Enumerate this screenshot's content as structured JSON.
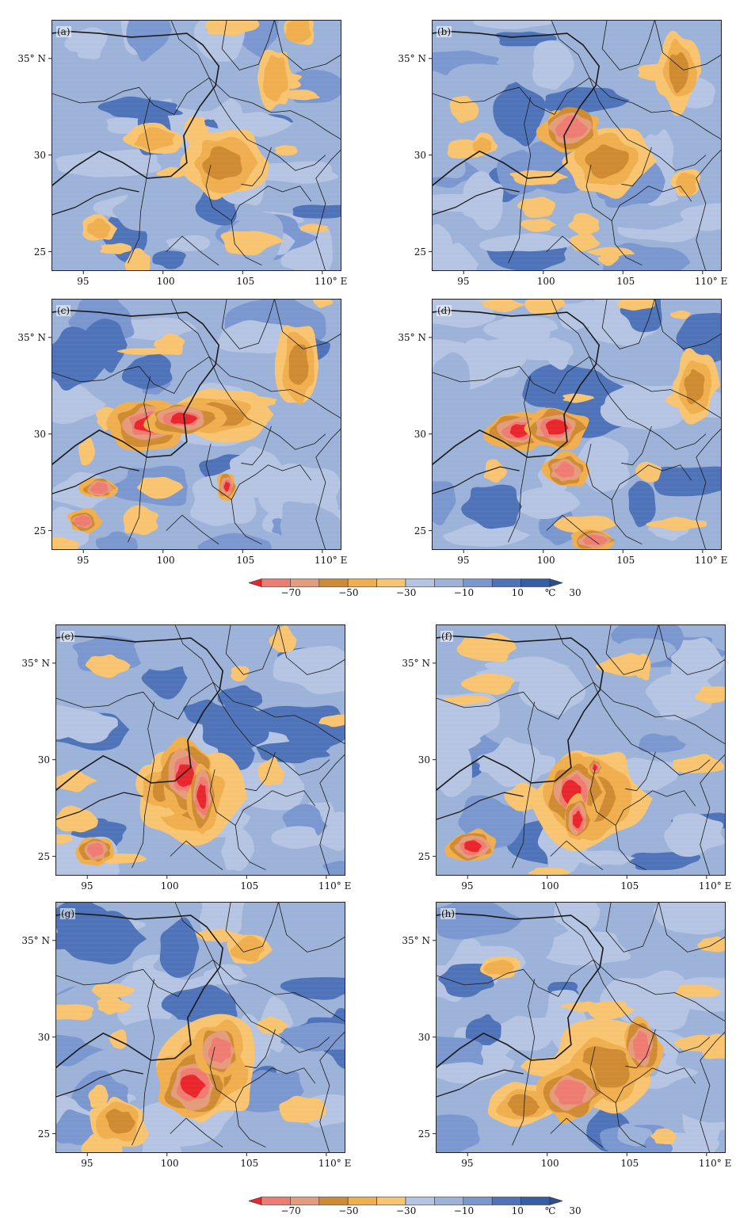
{
  "colorbar": {
    "colors": [
      "#e8262b",
      "#ee7c72",
      "#e49c7b",
      "#cf8b31",
      "#f0af4f",
      "#f8c470",
      "#b5c4e2",
      "#9cb2d8",
      "#7b97cf",
      "#4e73b8",
      "#345ea7",
      "#2d4e94"
    ],
    "tick_labels": [
      "−70",
      "−50",
      "−30",
      "−10",
      "10",
      "30"
    ],
    "unit": "℃"
  },
  "panels": [
    {
      "label": "(a)",
      "lat_labels": [
        "35° N",
        "30",
        "25"
      ],
      "lon_labels": [
        "95",
        "100",
        "105",
        "110° E"
      ],
      "cores": []
    },
    {
      "label": "(b)",
      "lat_labels": [
        "35° N",
        "30",
        "25"
      ],
      "lon_labels": [
        "95",
        "100",
        "105",
        "110° E"
      ],
      "cores": []
    },
    {
      "label": "(c)",
      "lat_labels": [
        "35° N",
        "30",
        "25"
      ],
      "lon_labels": [
        "95",
        "100",
        "105",
        "110° E"
      ],
      "cores": []
    },
    {
      "label": "(d)",
      "lat_labels": [
        "35° N",
        "30",
        "25"
      ],
      "lon_labels": [
        "95",
        "100",
        "105",
        "110° E"
      ],
      "cores": []
    },
    {
      "label": "(e)",
      "lat_labels": [
        "35° N",
        "30",
        "25"
      ],
      "lon_labels": [
        "95",
        "100",
        "105",
        "110° E"
      ],
      "cores": []
    },
    {
      "label": "(f)",
      "lat_labels": [
        "35° N",
        "30",
        "25"
      ],
      "lon_labels": [
        "95",
        "100",
        "105",
        "110° E"
      ],
      "cores": []
    },
    {
      "label": "(g)",
      "lat_labels": [
        "35° N",
        "30",
        "25"
      ],
      "lon_labels": [
        "95",
        "100",
        "105",
        "110° E"
      ],
      "cores": []
    },
    {
      "label": "(h)",
      "lat_labels": [
        "35° N",
        "30",
        "25"
      ],
      "lon_labels": [
        "95",
        "100",
        "105",
        "110° E"
      ],
      "cores": []
    }
  ]
}
